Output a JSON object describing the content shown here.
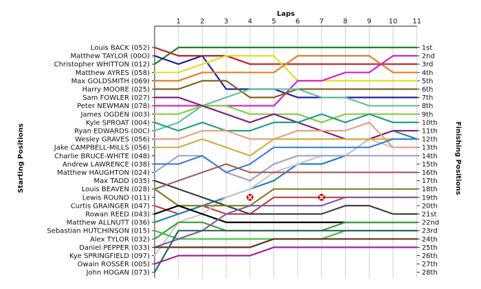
{
  "chart_data": {
    "type": "line",
    "title": "",
    "xlabel": "Laps",
    "ylabel_left": "Starting Positions",
    "ylabel_right": "Finishing Positions",
    "x": [
      0,
      1,
      2,
      3,
      4,
      5,
      6,
      7,
      8,
      9,
      10,
      11
    ],
    "xtick_labels": [
      "1",
      "2",
      "3",
      "4",
      "5",
      "6",
      "7",
      "8",
      "9",
      "10",
      "11"
    ],
    "ylim": [
      1,
      28
    ],
    "grid": "vertical",
    "starting_labels": [
      "Louis BACK (052)",
      "Matthew TAYLOR (00O)",
      "Christopher WHITTON (012)",
      "Matthew AYRES (058)",
      "Max GOLDSMITH (069)",
      "Harry MOORE (025)",
      "Sam FOWLER (027)",
      "Peter NEWMAN (078)",
      "James OGDEN (003)",
      "Kyle SPROAT (004)",
      "Ryan EDWARDS (00C)",
      "Wesley GRAVES (056)",
      "Jake CAMPBELL-MILLS (056)",
      "Charlie BRUCE-WHITE (048)",
      "Andrew LAWRENCE (038)",
      "Matthew HAUGHTON (024)",
      "Max TADD (035)",
      "Louis BEAVEN (028)",
      "Lewis ROUND (011)",
      "Curtis GRAINGER (047)",
      "Rowan REED (043)",
      "Matthew ALLNUTT (036)",
      "Sebastian HUTCHINSON (015)",
      "Alex TYLOR (032)",
      "Daniel PEPPER (033)",
      "Kye SPRINGFIELD (097)",
      "Owain ROSSER (005)",
      "John HOGAN (073)"
    ],
    "finishing_labels": [
      "1st",
      "2nd",
      "3rd",
      "4th",
      "5th",
      "6th",
      "7th",
      "8th",
      "9th",
      "10th",
      "11th",
      "12th",
      "13th",
      "14th",
      "15th",
      "16th",
      "17th",
      "18th",
      "19th",
      "20th",
      "21st",
      "22nd",
      "23rd",
      "24th",
      "25th",
      "26th",
      "27th",
      "28th"
    ],
    "series": [
      {
        "color": "#c04040",
        "values": [
          20,
          21,
          20,
          21,
          21,
          19,
          19,
          19,
          19,
          19,
          19,
          19
        ]
      },
      {
        "color": "#2080c0",
        "values": [
          22,
          21,
          20,
          19,
          18,
          17,
          15,
          15,
          14,
          12,
          11,
          12
        ]
      },
      {
        "color": "#c8c8c8",
        "values": [
          26,
          22,
          21,
          19,
          18,
          16,
          15,
          14,
          14,
          12,
          13,
          13
        ]
      },
      {
        "color": "#208020",
        "values": [
          3,
          1,
          1,
          1,
          1,
          1,
          1,
          1,
          1,
          1,
          1,
          1
        ]
      },
      {
        "color": "#2020a0",
        "values": [
          2,
          3,
          2,
          6,
          6,
          6,
          7,
          7,
          7,
          7,
          7,
          7
        ]
      },
      {
        "color": "#c02020",
        "values": [
          1,
          2,
          2,
          2,
          3,
          3,
          3,
          3,
          3,
          3,
          3,
          3
        ]
      },
      {
        "color": "#e0e020",
        "values": [
          4,
          4,
          3,
          2,
          2,
          2,
          5,
          5,
          5,
          5,
          5,
          5
        ]
      },
      {
        "color": "#e08020",
        "values": [
          5,
          5,
          4,
          4,
          4,
          4,
          2,
          2,
          2,
          2,
          4,
          4
        ]
      },
      {
        "color": "#d020d0",
        "values": [
          8,
          8,
          8,
          8,
          8,
          8,
          5,
          5,
          4,
          4,
          2,
          2
        ]
      },
      {
        "color": "#806020",
        "values": [
          6,
          6,
          5,
          5,
          7,
          7,
          6,
          6,
          6,
          6,
          6,
          6
        ]
      },
      {
        "color": "#60c0a0",
        "values": [
          11,
          10,
          8,
          7,
          6,
          6,
          6,
          7,
          7,
          8,
          8,
          8
        ]
      },
      {
        "color": "#80d040",
        "values": [
          9,
          9,
          8,
          8,
          9,
          9,
          9,
          10,
          9,
          9,
          9,
          9
        ]
      },
      {
        "color": "#802080",
        "values": [
          7,
          7,
          8,
          9,
          10,
          9,
          10,
          11,
          12,
          12,
          11,
          11
        ]
      },
      {
        "color": "#20a080",
        "values": [
          10,
          11,
          10,
          11,
          11,
          10,
          10,
          9,
          10,
          9,
          10,
          10
        ]
      },
      {
        "color": "#e8a080",
        "values": [
          12,
          12,
          11,
          11,
          12,
          12,
          11,
          11,
          11,
          10,
          13,
          13
        ]
      },
      {
        "color": "#d0b040",
        "values": [
          13,
          13,
          12,
          13,
          14,
          12,
          12,
          12,
          12,
          12,
          12,
          12
        ]
      },
      {
        "color": "#a0a0d0",
        "values": [
          16,
          14,
          14,
          16,
          17,
          15,
          14,
          14,
          14,
          14,
          14,
          14
        ]
      },
      {
        "color": "#4080d0",
        "values": [
          15,
          15,
          14,
          16,
          15,
          13,
          13,
          13,
          13,
          13,
          12,
          12
        ]
      },
      {
        "color": "#404040",
        "values": [
          17,
          18,
          19,
          20,
          21,
          21,
          21,
          21,
          20,
          20,
          21,
          21
        ]
      },
      {
        "color": "#a06060",
        "values": [
          18,
          17,
          16,
          15,
          16,
          16,
          16,
          16,
          16,
          16,
          16,
          16
        ]
      },
      {
        "color": "#808020",
        "values": [
          18,
          20,
          20,
          20,
          20,
          18,
          18,
          18,
          18,
          18,
          18,
          18
        ]
      },
      {
        "color": "#000000",
        "values": [
          21,
          20,
          21,
          22,
          22,
          22,
          22,
          22,
          22,
          22,
          22,
          22
        ]
      },
      {
        "color": "#40a040",
        "values": [
          24,
          22,
          22,
          23,
          23,
          23,
          23,
          23,
          22,
          22,
          22,
          22
        ]
      },
      {
        "color": "#40c040",
        "values": [
          23,
          24,
          24,
          24,
          24,
          24,
          24,
          24,
          23,
          23,
          23,
          23
        ]
      },
      {
        "color": "#8060a0",
        "values": [
          25,
          24,
          23,
          21,
          20,
          20,
          20,
          20,
          19,
          19,
          19,
          19
        ]
      },
      {
        "color": "#603020",
        "values": [
          25,
          25,
          25,
          25,
          25,
          24,
          24,
          24,
          24,
          24,
          24,
          24
        ]
      },
      {
        "color": "#a020a0",
        "values": [
          27,
          26,
          26,
          26,
          26,
          25,
          25,
          25,
          25,
          25,
          25,
          25
        ]
      },
      {
        "color": "#306060",
        "values": [
          28,
          23,
          23,
          23,
          23,
          23,
          23,
          23,
          23,
          23,
          23,
          23
        ]
      }
    ],
    "annotations": [
      {
        "type": "retirement",
        "color": "#cc0000",
        "x": 4,
        "y": 19
      },
      {
        "type": "retirement",
        "color": "#cc0000",
        "x": 7,
        "y": 19
      }
    ]
  }
}
